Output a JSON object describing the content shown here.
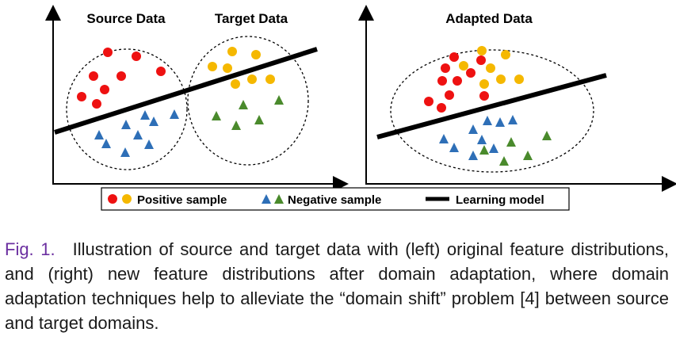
{
  "panels": {
    "left": {
      "source_title": "Source Data",
      "target_title": "Target Data"
    },
    "right": {
      "title": "Adapted Data"
    }
  },
  "legend": {
    "positive_label": "Positive sample",
    "negative_label": "Negative sample",
    "model_label": "Learning model"
  },
  "colors": {
    "source_positive": "#ee1111",
    "target_positive": "#f5b800",
    "source_negative": "#2e6fb7",
    "target_negative": "#4a8a2c",
    "model_line": "#000000"
  },
  "caption": {
    "label": "Fig. 1.",
    "text": "Illustration of source and target data with (left) original feature distributions, and (right) new feature distributions after domain adaptation, where domain adaptation techniques help to alleviate the “domain shift” problem [4] between source and target domains."
  }
}
